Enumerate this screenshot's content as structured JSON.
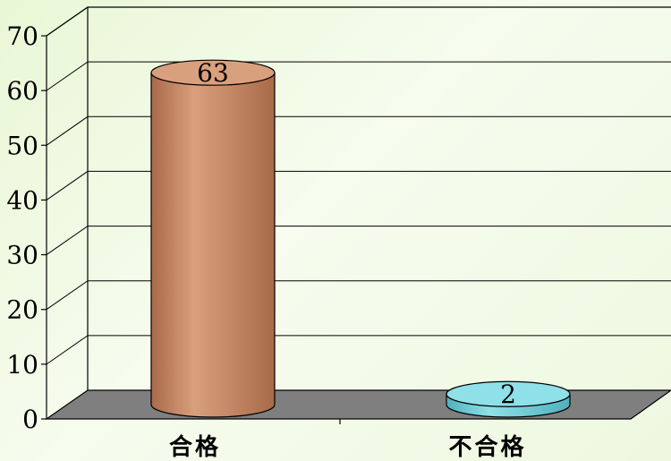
{
  "chart_data": {
    "type": "bar",
    "style": "3d-cylinder",
    "categories": [
      "合格",
      "不合格"
    ],
    "values": [
      63,
      2
    ],
    "data_labels": [
      "63",
      "2"
    ],
    "ylim": [
      0,
      70
    ],
    "yticks": [
      "0",
      "10",
      "20",
      "30",
      "40",
      "50",
      "60",
      "70"
    ],
    "grid": true,
    "legend": "none",
    "colors": {
      "bar_1": "#d9a07e",
      "bar_1_dark": "#a86a48",
      "bar_2": "#8fe0e8",
      "bar_2_dark": "#4fb1bd",
      "floor": "#7f7f7f"
    }
  }
}
